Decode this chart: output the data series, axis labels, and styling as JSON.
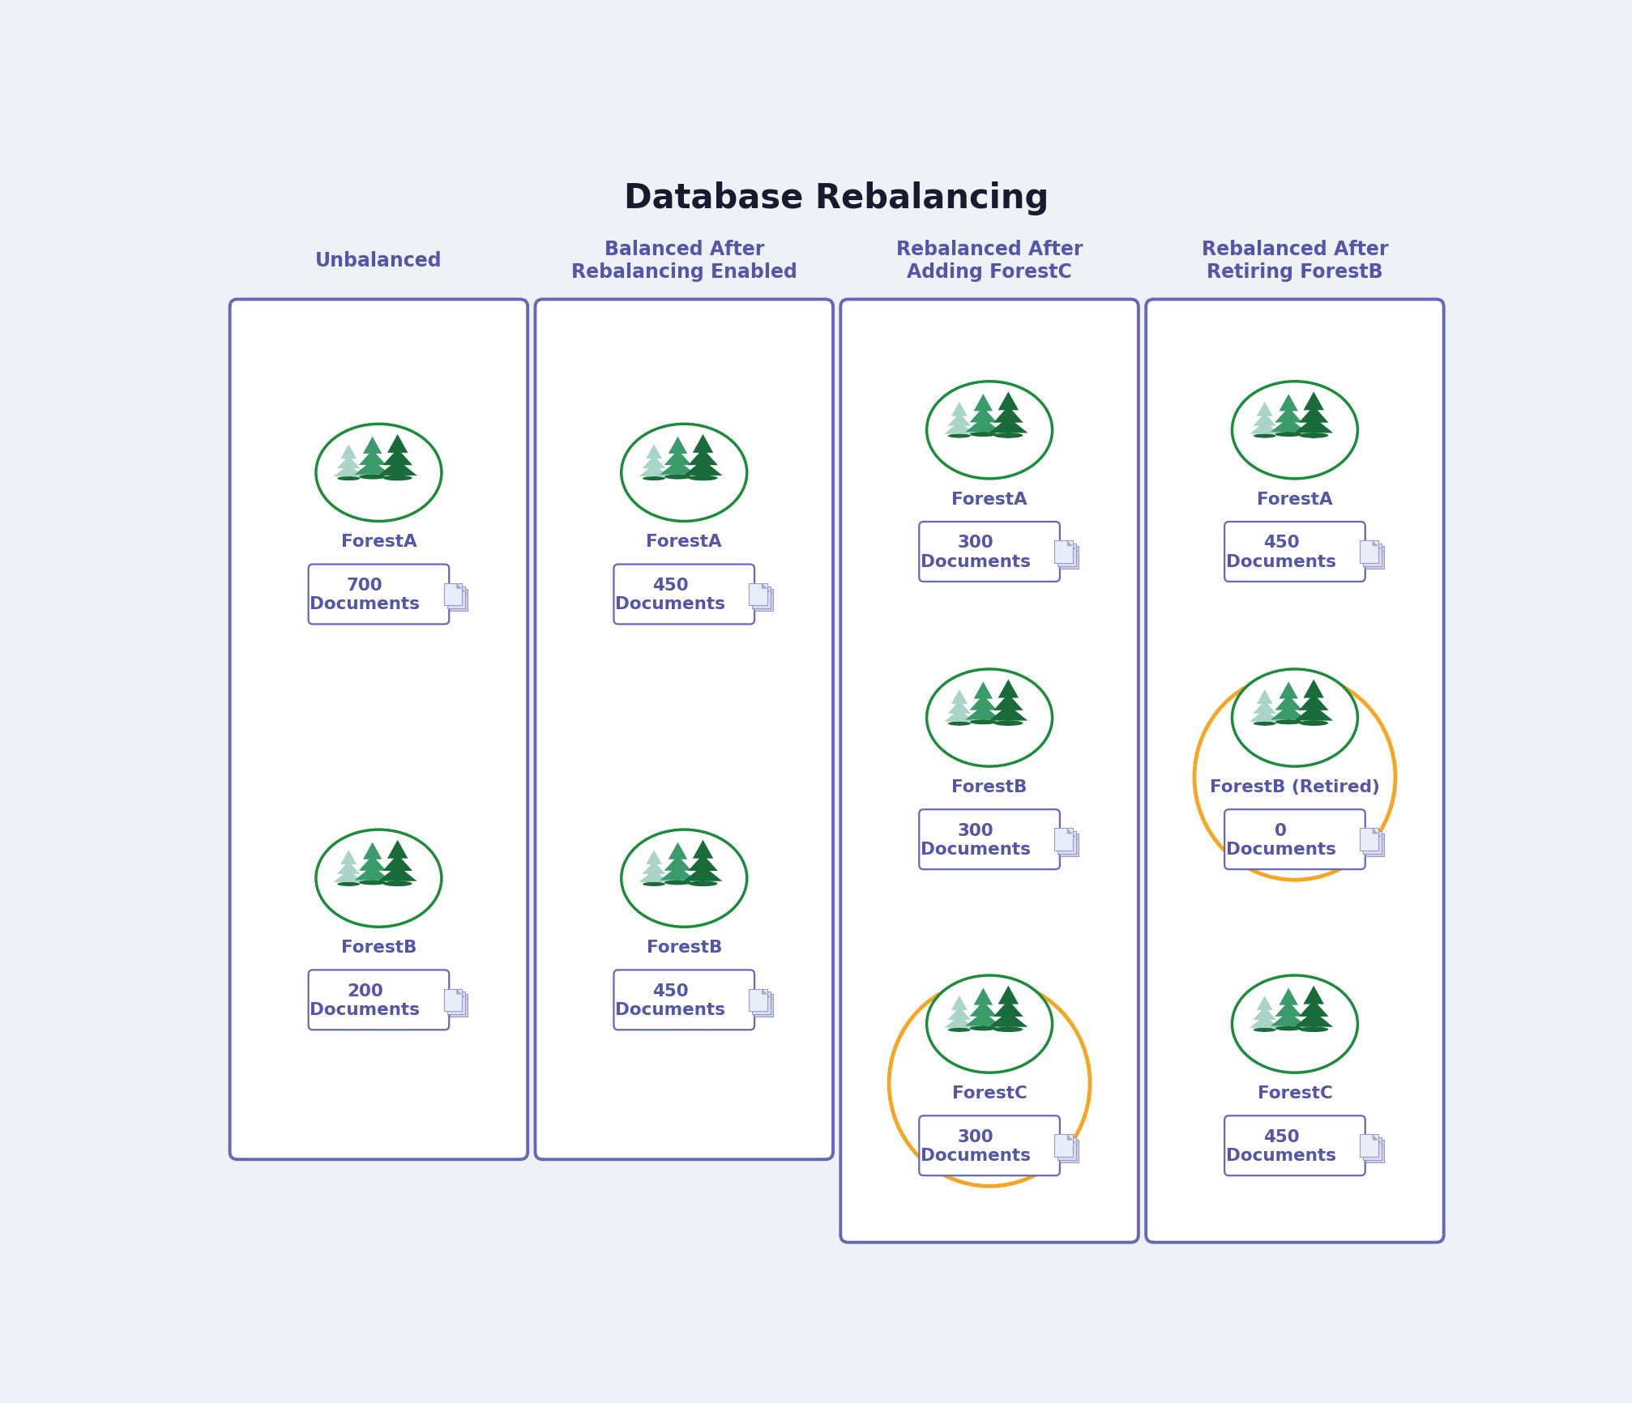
{
  "title": "Database Rebalancing",
  "title_color": "#1a1a2e",
  "background_color": "#eef2f7",
  "panel_bg": "#ffffff",
  "panel_border_color": "#6666bb",
  "orange_highlight": "#f5a623",
  "column_headers": [
    "Unbalanced",
    "Balanced After\nRebalancing Enabled",
    "Rebalanced After\nAdding ForestC",
    "Rebalanced After\nRetiring ForestB"
  ],
  "header_color": "#5555aa",
  "columns": [
    {
      "forests": [
        {
          "name": "ForestA",
          "docs": "700\nDocuments",
          "highlight": false
        },
        {
          "name": "ForestB",
          "docs": "200\nDocuments",
          "highlight": false
        }
      ]
    },
    {
      "forests": [
        {
          "name": "ForestA",
          "docs": "450\nDocuments",
          "highlight": false
        },
        {
          "name": "ForestB",
          "docs": "450\nDocuments",
          "highlight": false
        }
      ]
    },
    {
      "forests": [
        {
          "name": "ForestA",
          "docs": "300\nDocuments",
          "highlight": false
        },
        {
          "name": "ForestB",
          "docs": "300\nDocuments",
          "highlight": false
        },
        {
          "name": "ForestC",
          "docs": "300\nDocuments",
          "highlight": true
        }
      ]
    },
    {
      "forests": [
        {
          "name": "ForestA",
          "docs": "450\nDocuments",
          "highlight": false
        },
        {
          "name": "ForestB (Retired)",
          "docs": "0\nDocuments",
          "highlight": true
        },
        {
          "name": "ForestC",
          "docs": "450\nDocuments",
          "highlight": false
        }
      ]
    }
  ],
  "forest_label_color": "#5555aa",
  "doc_label_color": "#5555aa",
  "tree_dark": "#1a6b3a",
  "tree_mid": "#3a9b6a",
  "tree_light": "#7bbcaa",
  "tree_pale": "#aad4c8"
}
